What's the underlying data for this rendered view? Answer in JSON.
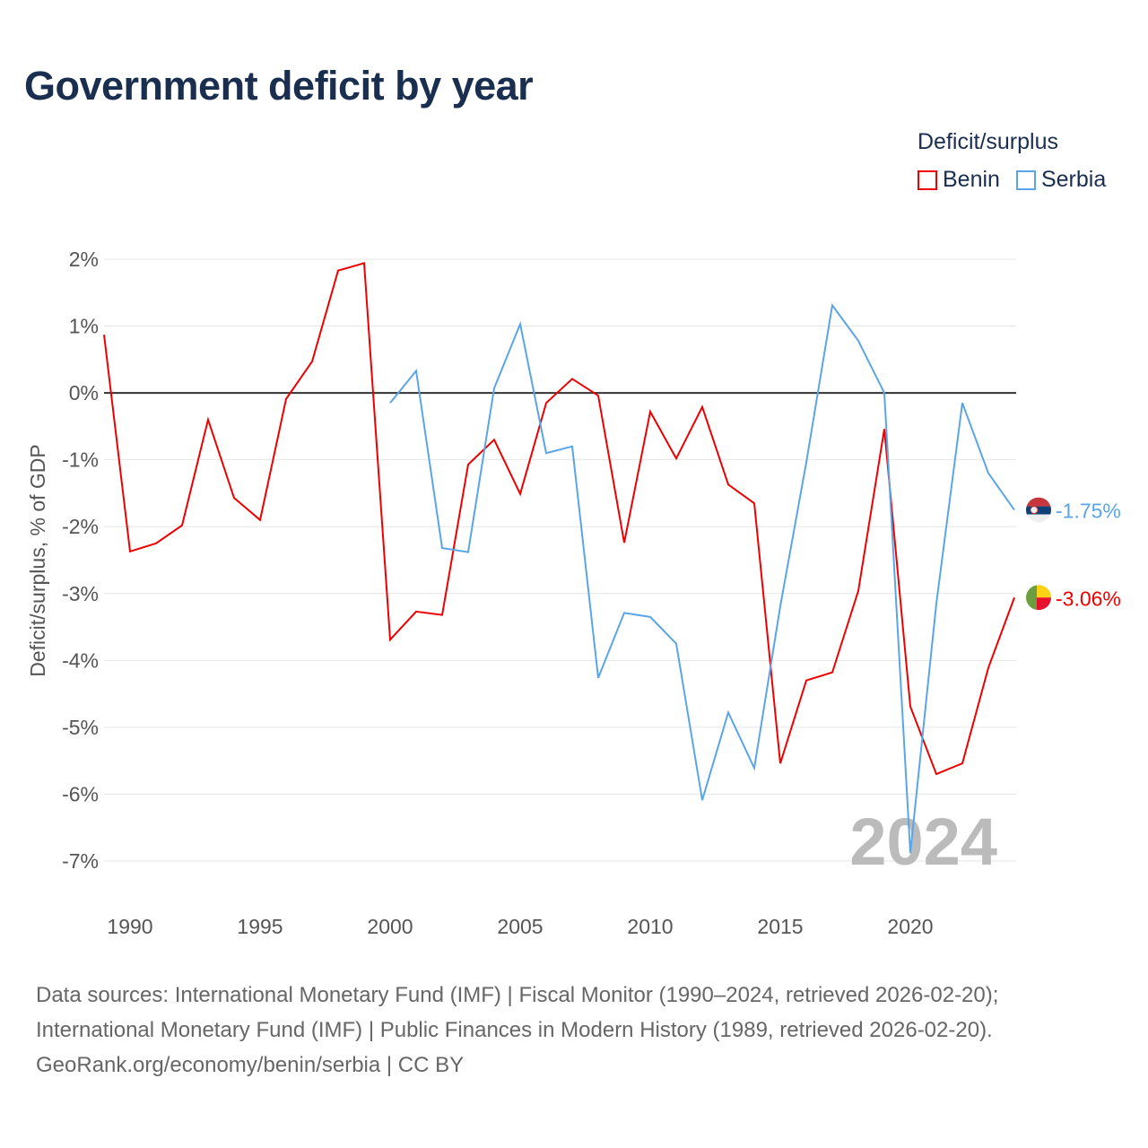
{
  "title": "Government deficit by year",
  "legend": {
    "title": "Deficit/surplus",
    "items": [
      {
        "label": "Benin",
        "color": "#ee0000"
      },
      {
        "label": "Serbia",
        "color": "#5aa5e8"
      }
    ]
  },
  "footer": {
    "line1": "Data sources: International Monetary Fund (IMF) | Fiscal Monitor (1990–2024, retrieved 2026-02-20);",
    "line2": "International Monetary Fund (IMF) | Public Finances in Modern History (1989, retrieved 2026-02-20).",
    "line3": "GeoRank.org/economy/benin/serbia | CC BY"
  },
  "chart_data": {
    "type": "line",
    "title": "Government deficit by year",
    "ylabel": "Deficit/surplus, % of GDP",
    "xlabel": "",
    "xlim": [
      1989,
      2024
    ],
    "ylim": [
      -7,
      2
    ],
    "xticks": [
      1990,
      1995,
      2000,
      2005,
      2010,
      2015,
      2020
    ],
    "yticks": [
      {
        "v": 2,
        "label": "2%"
      },
      {
        "v": 1,
        "label": "1%"
      },
      {
        "v": 0,
        "label": "0%"
      },
      {
        "v": -1,
        "label": "-1%"
      },
      {
        "v": -2,
        "label": "-2%"
      },
      {
        "v": -3,
        "label": "-3%"
      },
      {
        "v": -4,
        "label": "-4%"
      },
      {
        "v": -5,
        "label": "-5%"
      },
      {
        "v": -6,
        "label": "-6%"
      },
      {
        "v": -7,
        "label": "-7%"
      }
    ],
    "year_watermark": "2024",
    "series": [
      {
        "name": "Benin",
        "color": "#ee0000",
        "end_label": "-3.06%",
        "start": 1989,
        "values": [
          0.87,
          -2.37,
          -2.25,
          -1.98,
          -0.4,
          -1.57,
          -1.9,
          -0.09,
          0.47,
          1.83,
          1.94,
          -3.69,
          -3.27,
          -3.32,
          -1.07,
          -0.7,
          -1.51,
          -0.15,
          0.21,
          -0.04,
          -2.24,
          -0.28,
          -0.98,
          -0.21,
          -1.37,
          -1.65,
          -5.54,
          -4.3,
          -4.18,
          -2.96,
          -0.54,
          -4.69,
          -5.7,
          -5.54,
          -4.11,
          -3.06
        ]
      },
      {
        "name": "Serbia",
        "color": "#5aa5e8",
        "end_label": "-1.75%",
        "start": 2000,
        "values": [
          -0.15,
          0.33,
          -2.32,
          -2.38,
          0.07,
          1.03,
          -0.9,
          -0.8,
          -4.26,
          -3.29,
          -3.35,
          -3.75,
          -6.09,
          -4.78,
          -5.61,
          -3.19,
          -1.04,
          1.31,
          0.78,
          0.0,
          -6.88,
          -3.15,
          -0.15,
          -1.2,
          -1.75
        ]
      }
    ]
  }
}
